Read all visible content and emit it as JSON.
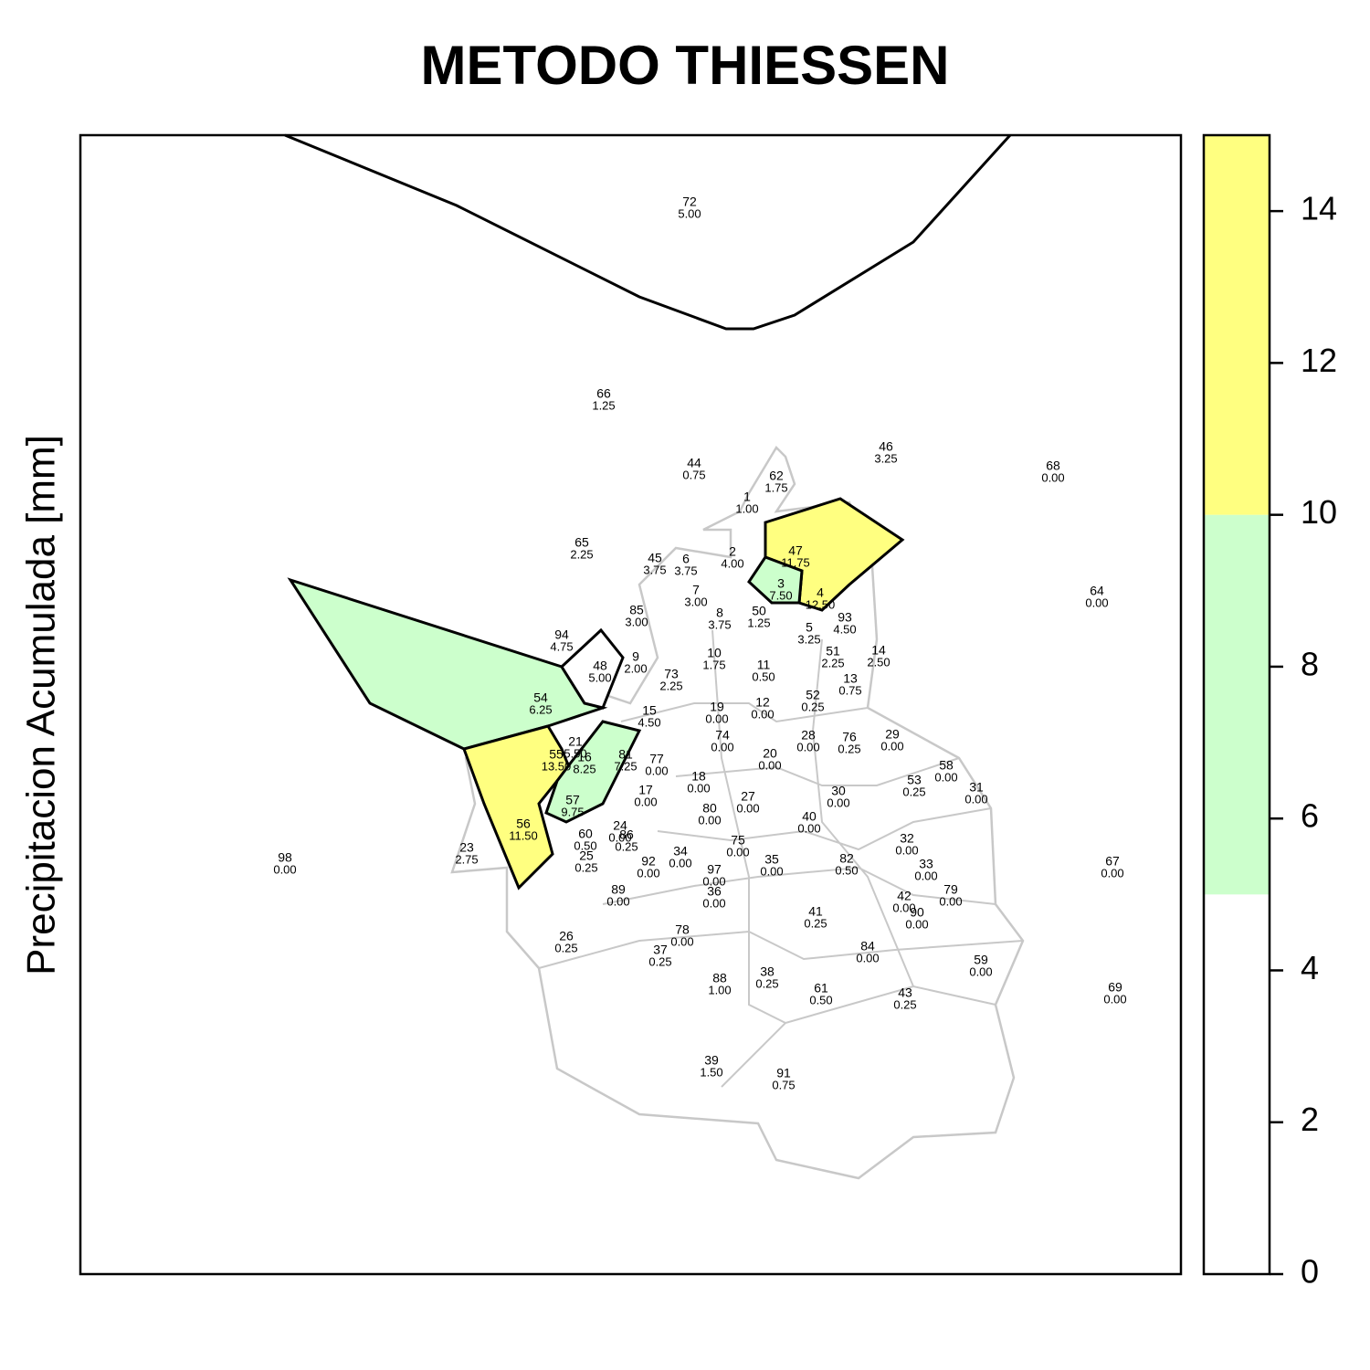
{
  "title": "METODO THIESSEN",
  "y_axis_label": "Precipitacion Acumulada [mm]",
  "colorbar": {
    "lim": [
      0,
      15
    ],
    "ticks": [
      0,
      2,
      4,
      6,
      8,
      10,
      12,
      14
    ],
    "breaks": [
      0,
      5,
      10,
      15
    ],
    "colors": [
      "#ffffff",
      "#ccffcc",
      "#ffff80"
    ]
  },
  "stations": [
    {
      "id": "72",
      "value": "5.00"
    },
    {
      "id": "66",
      "value": "1.25"
    },
    {
      "id": "44",
      "value": "0.75"
    },
    {
      "id": "62",
      "value": "1.75"
    },
    {
      "id": "46",
      "value": "3.25"
    },
    {
      "id": "68",
      "value": "0.00"
    },
    {
      "id": "1",
      "value": "1.00"
    },
    {
      "id": "65",
      "value": "2.25"
    },
    {
      "id": "45",
      "value": "3.75"
    },
    {
      "id": "6",
      "value": "3.75"
    },
    {
      "id": "2",
      "value": "4.00"
    },
    {
      "id": "47",
      "value": "11.75"
    },
    {
      "id": "3",
      "value": "7.50"
    },
    {
      "id": "4",
      "value": "12.50"
    },
    {
      "id": "64",
      "value": "0.00"
    },
    {
      "id": "7",
      "value": "3.00"
    },
    {
      "id": "85",
      "value": "3.00"
    },
    {
      "id": "8",
      "value": "3.75"
    },
    {
      "id": "50",
      "value": "1.25"
    },
    {
      "id": "93",
      "value": "4.50"
    },
    {
      "id": "94",
      "value": "4.75"
    },
    {
      "id": "5",
      "value": "3.25"
    },
    {
      "id": "51",
      "value": "2.25"
    },
    {
      "id": "14",
      "value": "2.50"
    },
    {
      "id": "9",
      "value": "2.00"
    },
    {
      "id": "48",
      "value": "5.00"
    },
    {
      "id": "10",
      "value": "1.75"
    },
    {
      "id": "11",
      "value": "0.50"
    },
    {
      "id": "73",
      "value": "2.25"
    },
    {
      "id": "13",
      "value": "0.75"
    },
    {
      "id": "54",
      "value": "6.25"
    },
    {
      "id": "52",
      "value": "0.25"
    },
    {
      "id": "15",
      "value": "4.50"
    },
    {
      "id": "19",
      "value": "0.00"
    },
    {
      "id": "12",
      "value": "0.00"
    },
    {
      "id": "74",
      "value": "0.00"
    },
    {
      "id": "28",
      "value": "0.00"
    },
    {
      "id": "76",
      "value": "0.25"
    },
    {
      "id": "29",
      "value": "0.00"
    },
    {
      "id": "21",
      "value": "5.50"
    },
    {
      "id": "55",
      "value": "13.50"
    },
    {
      "id": "16",
      "value": "8.25"
    },
    {
      "id": "81",
      "value": "7.25"
    },
    {
      "id": "77",
      "value": "0.00"
    },
    {
      "id": "20",
      "value": "0.00"
    },
    {
      "id": "58",
      "value": "0.00"
    },
    {
      "id": "53",
      "value": "0.25"
    },
    {
      "id": "18",
      "value": "0.00"
    },
    {
      "id": "31",
      "value": "0.00"
    },
    {
      "id": "17",
      "value": "0.00"
    },
    {
      "id": "30",
      "value": "0.00"
    },
    {
      "id": "27",
      "value": "0.00"
    },
    {
      "id": "57",
      "value": "9.75"
    },
    {
      "id": "80",
      "value": "0.00"
    },
    {
      "id": "40",
      "value": "0.00"
    },
    {
      "id": "56",
      "value": "11.50"
    },
    {
      "id": "24",
      "value": "0.00"
    },
    {
      "id": "86",
      "value": "0.25"
    },
    {
      "id": "60",
      "value": "0.50"
    },
    {
      "id": "75",
      "value": "0.00"
    },
    {
      "id": "32",
      "value": "0.00"
    },
    {
      "id": "23",
      "value": "2.75"
    },
    {
      "id": "25",
      "value": "0.25"
    },
    {
      "id": "34",
      "value": "0.00"
    },
    {
      "id": "35",
      "value": "0.00"
    },
    {
      "id": "82",
      "value": "0.50"
    },
    {
      "id": "92",
      "value": "0.00"
    },
    {
      "id": "98",
      "value": "0.00"
    },
    {
      "id": "67",
      "value": "0.00"
    },
    {
      "id": "33",
      "value": "0.00"
    },
    {
      "id": "97",
      "value": "0.00"
    },
    {
      "id": "79",
      "value": "0.00"
    },
    {
      "id": "36",
      "value": "0.00"
    },
    {
      "id": "89",
      "value": "0.00"
    },
    {
      "id": "42",
      "value": "0.00"
    },
    {
      "id": "90",
      "value": "0.00"
    },
    {
      "id": "41",
      "value": "0.25"
    },
    {
      "id": "26",
      "value": "0.25"
    },
    {
      "id": "78",
      "value": "0.00"
    },
    {
      "id": "37",
      "value": "0.25"
    },
    {
      "id": "84",
      "value": "0.00"
    },
    {
      "id": "59",
      "value": "0.00"
    },
    {
      "id": "38",
      "value": "0.25"
    },
    {
      "id": "88",
      "value": "1.00"
    },
    {
      "id": "61",
      "value": "0.50"
    },
    {
      "id": "43",
      "value": "0.25"
    },
    {
      "id": "69",
      "value": "0.00"
    },
    {
      "id": "39",
      "value": "1.50"
    },
    {
      "id": "91",
      "value": "0.75"
    }
  ]
}
